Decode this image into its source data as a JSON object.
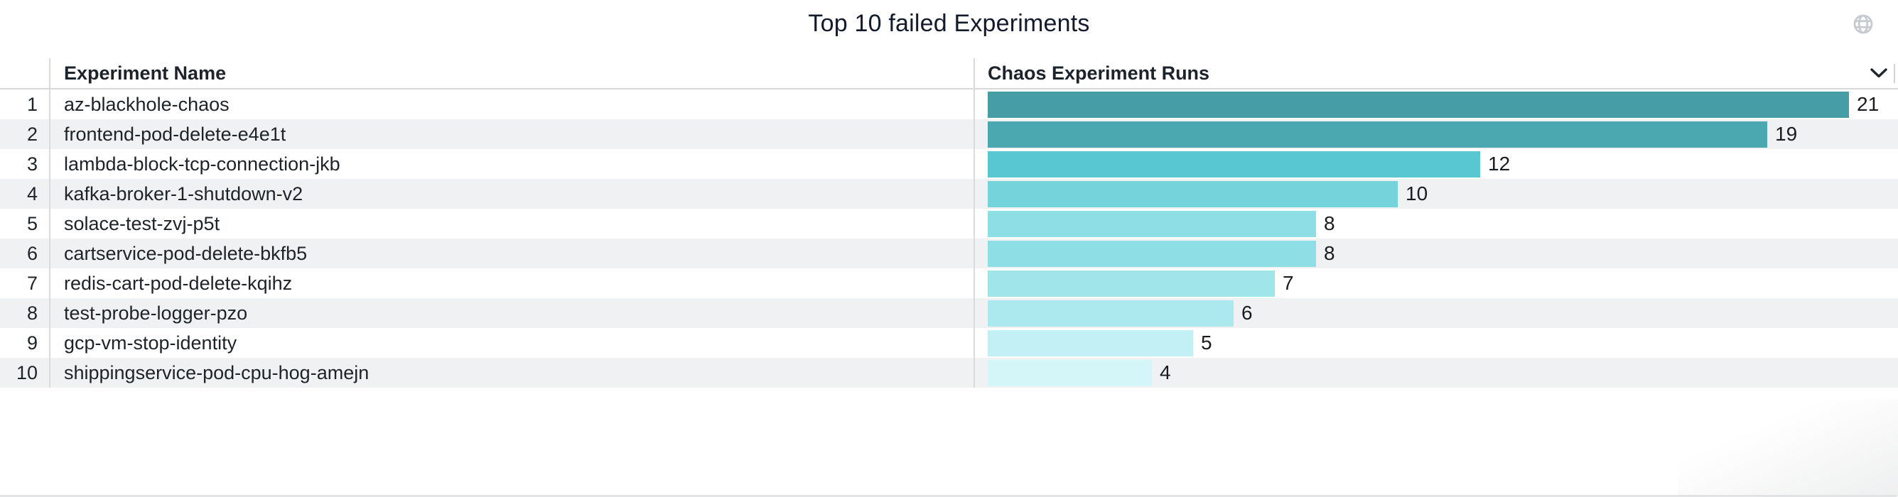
{
  "panel": {
    "title": "Top 10 failed Experiments",
    "header": {
      "experiment_name_label": "Experiment Name",
      "runs_label": "Chaos Experiment Runs"
    },
    "icons": {
      "globe": "globe-icon",
      "chevron": "chevron-down-icon"
    },
    "colors": {
      "row_alt_bg": "#F0F1F2",
      "divider": "#D8DADC",
      "header_border": "#D6D8DB",
      "title_text": "#121A2C",
      "cell_text": "#1E2329",
      "value_text": "#191C20",
      "globe_icon": "#C6CAD1",
      "chevron_icon": "#22262B"
    }
  },
  "chart_data": {
    "type": "bar",
    "orientation": "horizontal",
    "title": "Top 10 failed Experiments",
    "columns": [
      "Experiment Name",
      "Chaos Experiment Runs"
    ],
    "ranks": [
      1,
      2,
      3,
      4,
      5,
      6,
      7,
      8,
      9,
      10
    ],
    "categories": [
      "az-blackhole-chaos",
      "frontend-pod-delete-e4e1t",
      "lambda-block-tcp-connection-jkb",
      "kafka-broker-1-shutdown-v2",
      "solace-test-zvj-p5t",
      "cartservice-pod-delete-bkfb5",
      "redis-cart-pod-delete-kqihz",
      "test-probe-logger-pzo",
      "gcp-vm-stop-identity",
      "shippingservice-pod-cpu-hog-amejn"
    ],
    "values": [
      21,
      19,
      12,
      10,
      8,
      8,
      7,
      6,
      5,
      4
    ],
    "bar_colors": [
      "#469DA6",
      "#4BA7B0",
      "#58C7D2",
      "#75D3DC",
      "#8DDFE5",
      "#8DDFE5",
      "#A0E5EA",
      "#ACE9EE",
      "#C3F0F4",
      "#D4F6F9"
    ],
    "xlim": [
      0,
      21
    ],
    "value_labels_shown": true,
    "legend": "none",
    "grid": false
  }
}
